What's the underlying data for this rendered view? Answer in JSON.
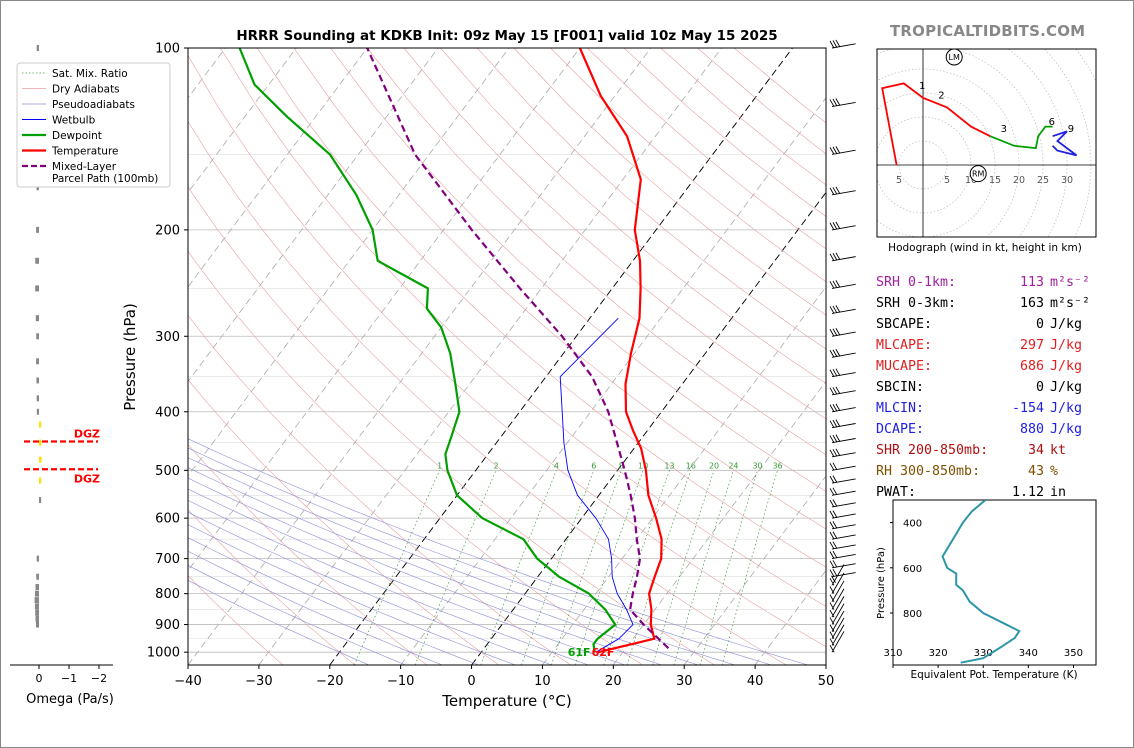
{
  "brand": "TROPICALTIDBITS.COM",
  "chart_data": [
    {
      "type": "line",
      "subtype": "skew-t",
      "title": "HRRR Sounding at KDKB Init: 09z May 15 [F001] valid 10z May 15 2025",
      "xlabel": "Temperature (°C)",
      "ylabel": "Pressure (hPa)",
      "xlim": [
        -40,
        50
      ],
      "ylim": [
        1050,
        100
      ],
      "x_ticks": [
        "−40",
        "−30",
        "−20",
        "−10",
        "0",
        "10",
        "20",
        "30",
        "40",
        "50"
      ],
      "y_ticks": [
        "100",
        "200",
        "300",
        "400",
        "500",
        "600",
        "700",
        "800",
        "900",
        "1000"
      ],
      "mixing_ratio_labels": [
        "1",
        "2",
        "4",
        "6",
        "8",
        "10",
        "13",
        "16",
        "20",
        "24",
        "30",
        "36"
      ],
      "surface_labels": {
        "dewpoint": "61F",
        "temperature": "62F"
      },
      "legend": [
        "Sat. Mix. Ratio",
        "Dry Adiabats",
        "Pseudoadiabats",
        "Wetbulb",
        "Dewpoint",
        "Temperature",
        "Mixed-Layer\nParcel Path (100mb)"
      ],
      "legend_position": "top-left",
      "series": [
        {
          "name": "Temperature",
          "color": "#ff0000",
          "points": [
            [
              16.5,
              1000
            ],
            [
              23,
              950
            ],
            [
              21,
              900
            ],
            [
              19.5,
              850
            ],
            [
              17.5,
              800
            ],
            [
              16.5,
              750
            ],
            [
              15.5,
              700
            ],
            [
              13.5,
              650
            ],
            [
              10.5,
              600
            ],
            [
              7,
              550
            ],
            [
              4,
              500
            ],
            [
              1,
              460
            ],
            [
              -2,
              430
            ],
            [
              -5,
              400
            ],
            [
              -8,
              360
            ],
            [
              -10.5,
              320
            ],
            [
              -13,
              280
            ],
            [
              -16,
              250
            ],
            [
              -19,
              225
            ],
            [
              -23,
              200
            ],
            [
              -27.5,
              165
            ],
            [
              -34,
              140
            ],
            [
              -42,
              120
            ],
            [
              -50,
              100
            ]
          ]
        },
        {
          "name": "Dewpoint",
          "color": "#00a000",
          "points": [
            [
              16,
              1000
            ],
            [
              15,
              970
            ],
            [
              15,
              950
            ],
            [
              16,
              900
            ],
            [
              13,
              850
            ],
            [
              9,
              800
            ],
            [
              3,
              750
            ],
            [
              -2,
              700
            ],
            [
              -6,
              650
            ],
            [
              -14,
              600
            ],
            [
              -20,
              550
            ],
            [
              -24,
              500
            ],
            [
              -26,
              470
            ],
            [
              -27,
              440
            ],
            [
              -28.5,
              400
            ],
            [
              -32,
              360
            ],
            [
              -36,
              320
            ],
            [
              -40,
              290
            ],
            [
              -44,
              270
            ],
            [
              -46,
              250
            ],
            [
              -56,
              225
            ],
            [
              -60,
              200
            ],
            [
              -66,
              175
            ],
            [
              -74,
              150
            ],
            [
              -84,
              130
            ],
            [
              -92,
              115
            ],
            [
              -98,
              100
            ]
          ]
        },
        {
          "name": "Wetbulb",
          "color": "#0000ff",
          "points": [
            [
              16.2,
              1000
            ],
            [
              18,
              950
            ],
            [
              18.5,
              900
            ],
            [
              16,
              850
            ],
            [
              13,
              800
            ],
            [
              10.5,
              750
            ],
            [
              8.5,
              700
            ],
            [
              6,
              650
            ],
            [
              2,
              600
            ],
            [
              -3,
              550
            ],
            [
              -7,
              500
            ],
            [
              -10.5,
              450
            ],
            [
              -14,
              400
            ],
            [
              -18,
              350
            ],
            [
              -16,
              280
            ]
          ]
        },
        {
          "name": "Mixed-Layer\nParcel Path (100mb)",
          "color": "#800080",
          "points": [
            [
              26,
              985
            ],
            [
              20,
              900
            ],
            [
              16.5,
              850
            ],
            [
              15.2,
              800
            ],
            [
              14,
              750
            ],
            [
              12.5,
              700
            ],
            [
              10,
              650
            ],
            [
              7.5,
              600
            ],
            [
              4.5,
              550
            ],
            [
              1,
              500
            ],
            [
              -3,
              450
            ],
            [
              -7.5,
              400
            ],
            [
              -13.5,
              350
            ],
            [
              -22,
              300
            ],
            [
              -33,
              250
            ],
            [
              -46,
              200
            ],
            [
              -62,
              150
            ],
            [
              -80,
              100
            ]
          ]
        }
      ],
      "dgz_labels": [
        "DGZ",
        "DGZ"
      ],
      "dgz_pressure": [
        448,
        498
      ]
    },
    {
      "type": "bar",
      "orientation": "horizontal",
      "xlabel": "Omega (Pa/s)",
      "x_ticks": [
        "0",
        "−1",
        "−2"
      ],
      "values_note": "vertical velocity profile",
      "points": [
        [
          0.02,
          100
        ],
        [
          0.03,
          170
        ],
        [
          0.06,
          200
        ],
        [
          0.12,
          225
        ],
        [
          0.12,
          250
        ],
        [
          0.08,
          280
        ],
        [
          0.05,
          300
        ],
        [
          0.06,
          330
        ],
        [
          0.04,
          355
        ],
        [
          0.02,
          380
        ],
        [
          0.01,
          400
        ],
        [
          -0.02,
          420
        ],
        [
          -0.03,
          450
        ],
        [
          -0.04,
          480
        ],
        [
          -0.02,
          520
        ],
        [
          -0.01,
          560
        ],
        [
          0.02,
          700
        ],
        [
          0.05,
          750
        ],
        [
          0.1,
          780
        ],
        [
          0.14,
          800
        ],
        [
          0.16,
          820
        ],
        [
          0.14,
          840
        ],
        [
          0.12,
          860
        ],
        [
          0.1,
          880
        ],
        [
          0.07,
          900
        ]
      ]
    },
    {
      "type": "line",
      "title": "Hodograph (wind in kt, height in km)",
      "x_ticks": [
        "5",
        "5",
        "10",
        "15",
        "20",
        "25",
        "30"
      ],
      "labels_km": [
        "1",
        "2",
        "3",
        "6",
        "9"
      ],
      "markers": [
        "LM",
        "RM"
      ]
    },
    {
      "type": "line",
      "xlabel": "Equivalent Pot. Temperature (K)",
      "ylabel": "Pressure (hPa)",
      "x_ticks": [
        "310",
        "320",
        "330",
        "340",
        "350"
      ],
      "y_ticks": [
        "400",
        "600",
        "800"
      ],
      "series": [
        {
          "name": "theta-e",
          "color": "#2e96a8",
          "points": [
            [
              330.5,
              300
            ],
            [
              327.5,
              350
            ],
            [
              325.5,
              400
            ],
            [
              324,
              450
            ],
            [
              322.5,
              500
            ],
            [
              321,
              550
            ],
            [
              322,
              600
            ],
            [
              324,
              625
            ],
            [
              324,
              675
            ],
            [
              325.5,
              700
            ],
            [
              327,
              750
            ],
            [
              330,
              800
            ],
            [
              335,
              850
            ],
            [
              338,
              880
            ],
            [
              337,
              910
            ],
            [
              334,
              950
            ],
            [
              330,
              1000
            ],
            [
              325,
              1020
            ]
          ]
        }
      ]
    }
  ],
  "stats": [
    {
      "label": "SRH 0-1km:",
      "value": "113",
      "unit": "m²s⁻²",
      "color": "#a020a0"
    },
    {
      "label": "SRH 0-3km:",
      "value": "163",
      "unit": "m²s⁻²",
      "color": "#000000"
    },
    {
      "label": "SBCAPE:",
      "value": "0",
      "unit": "J/kg",
      "color": "#000000"
    },
    {
      "label": "MLCAPE:",
      "value": "297",
      "unit": "J/kg",
      "color": "#e02020"
    },
    {
      "label": "MUCAPE:",
      "value": "686",
      "unit": "J/kg",
      "color": "#e02020"
    },
    {
      "label": "SBCIN:",
      "value": "0",
      "unit": "J/kg",
      "color": "#000000"
    },
    {
      "label": "MLCIN:",
      "value": "-154",
      "unit": "J/kg",
      "color": "#2020e0"
    },
    {
      "label": "DCAPE:",
      "value": "880",
      "unit": "J/kg",
      "color": "#2020e0"
    },
    {
      "label": "SHR 200-850mb:",
      "value": "34",
      "unit": "kt",
      "color": "#b01010"
    },
    {
      "label": "RH 300-850mb:",
      "value": "43",
      "unit": "%",
      "color": "#805000"
    },
    {
      "label": "PWAT:",
      "value": "1.12",
      "unit": "in",
      "color": "#000000"
    }
  ]
}
